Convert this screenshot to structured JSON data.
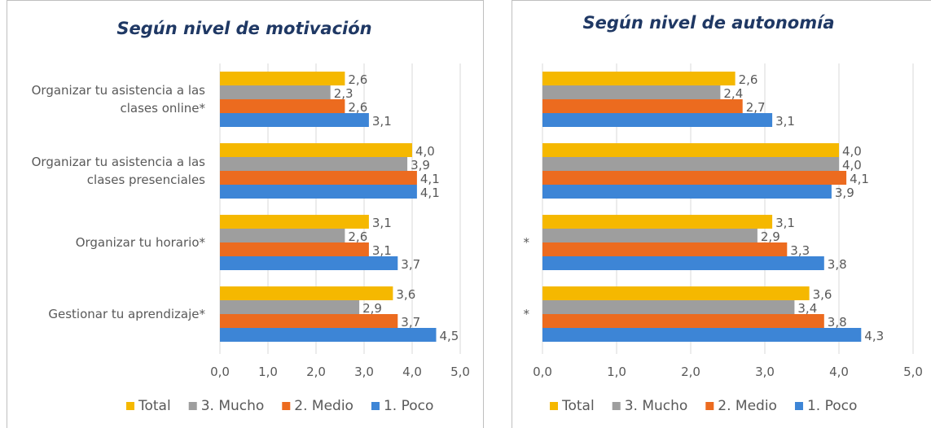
{
  "chart_data": [
    {
      "type": "bar",
      "title": "Según nivel de motivación",
      "categories": [
        "Organizar tu asistencia a las clases online*",
        "Organizar tu asistencia a las clases presenciales",
        "Organizar tu horario*",
        "Gestionar tu aprendizaje*"
      ],
      "series": [
        {
          "name": "Total",
          "color": "#f5b800",
          "values": [
            2.6,
            4.0,
            3.1,
            3.6
          ],
          "value_labels": [
            "2,6",
            "4,0",
            "3,1",
            "3,6"
          ]
        },
        {
          "name": "3. Mucho",
          "color": "#9e9e9e",
          "values": [
            2.3,
            3.9,
            2.6,
            2.9
          ],
          "value_labels": [
            "2,3",
            "3,9",
            "2,6",
            "2,9"
          ]
        },
        {
          "name": "2. Medio",
          "color": "#ec6b1f",
          "values": [
            2.6,
            4.1,
            3.1,
            3.7
          ],
          "value_labels": [
            "2,6",
            "4,1",
            "3,1",
            "3,7"
          ]
        },
        {
          "name": "1. Poco",
          "color": "#3d85d6",
          "values": [
            3.1,
            4.1,
            3.7,
            4.5
          ],
          "value_labels": [
            "3,1",
            "4,1",
            "3,7",
            "4,5"
          ]
        }
      ],
      "xlim": [
        0,
        5
      ],
      "xticks": [
        {
          "value": 0,
          "label": "0,0"
        },
        {
          "value": 1,
          "label": "1,0"
        },
        {
          "value": 2,
          "label": "2,0"
        },
        {
          "value": 3,
          "label": "3,0"
        },
        {
          "value": 4,
          "label": "4,0"
        },
        {
          "value": 5,
          "label": "5,0"
        }
      ],
      "grid": true
    },
    {
      "type": "bar",
      "title": "Según nivel de autonomía",
      "categories": [
        null,
        null,
        "*",
        "*"
      ],
      "series": [
        {
          "name": "Total",
          "color": "#f5b800",
          "values": [
            2.6,
            4.0,
            3.1,
            3.6
          ],
          "value_labels": [
            "2,6",
            "4,0",
            "3,1",
            "3,6"
          ]
        },
        {
          "name": "3. Mucho",
          "color": "#9e9e9e",
          "values": [
            2.4,
            4.0,
            2.9,
            3.4
          ],
          "value_labels": [
            "2,4",
            "4,0",
            "2,9",
            "3,4"
          ]
        },
        {
          "name": "2. Medio",
          "color": "#ec6b1f",
          "values": [
            2.7,
            4.1,
            3.3,
            3.8
          ],
          "value_labels": [
            "2,7",
            "4,1",
            "3,3",
            "3,8"
          ]
        },
        {
          "name": "1. Poco",
          "color": "#3d85d6",
          "values": [
            3.1,
            3.9,
            3.8,
            4.3
          ],
          "value_labels": [
            "3,1",
            "3,9",
            "3,8",
            "4,3"
          ]
        }
      ],
      "xlim": [
        0,
        5
      ],
      "xticks": [
        {
          "value": 0,
          "label": "0,0"
        },
        {
          "value": 1,
          "label": "1,0"
        },
        {
          "value": 2,
          "label": "2,0"
        },
        {
          "value": 3,
          "label": "3,0"
        },
        {
          "value": 4,
          "label": "4,0"
        },
        {
          "value": 5,
          "label": "5,0"
        }
      ],
      "grid": true
    }
  ]
}
